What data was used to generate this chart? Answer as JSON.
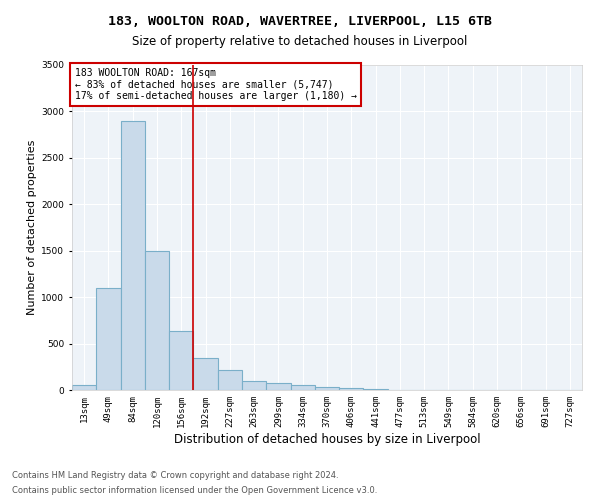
{
  "title1": "183, WOOLTON ROAD, WAVERTREE, LIVERPOOL, L15 6TB",
  "title2": "Size of property relative to detached houses in Liverpool",
  "xlabel": "Distribution of detached houses by size in Liverpool",
  "ylabel": "Number of detached properties",
  "footnote1": "Contains HM Land Registry data © Crown copyright and database right 2024.",
  "footnote2": "Contains public sector information licensed under the Open Government Licence v3.0.",
  "annotation_line1": "183 WOOLTON ROAD: 167sqm",
  "annotation_line2": "← 83% of detached houses are smaller (5,747)",
  "annotation_line3": "17% of semi-detached houses are larger (1,180) →",
  "bar_labels": [
    "13sqm",
    "49sqm",
    "84sqm",
    "120sqm",
    "156sqm",
    "192sqm",
    "227sqm",
    "263sqm",
    "299sqm",
    "334sqm",
    "370sqm",
    "406sqm",
    "441sqm",
    "477sqm",
    "513sqm",
    "549sqm",
    "584sqm",
    "620sqm",
    "656sqm",
    "691sqm",
    "727sqm"
  ],
  "bar_values": [
    55,
    1100,
    2900,
    1500,
    640,
    340,
    215,
    100,
    80,
    55,
    30,
    20,
    10,
    5,
    3,
    2,
    1,
    1,
    0,
    0,
    0
  ],
  "bar_color": "#c9daea",
  "bar_edgecolor": "#7aafc9",
  "vline_x": 4.5,
  "vline_color": "#cc0000",
  "ylim": [
    0,
    3500
  ],
  "yticks": [
    0,
    500,
    1000,
    1500,
    2000,
    2500,
    3000,
    3500
  ],
  "bg_color": "#eef3f8",
  "grid_color": "#ffffff",
  "annotation_box_color": "#cc0000",
  "title1_fontsize": 9.5,
  "title2_fontsize": 8.5,
  "ylabel_fontsize": 8,
  "xlabel_fontsize": 8.5,
  "tick_fontsize": 6.5,
  "annotation_fontsize": 7,
  "footnote_fontsize": 6
}
